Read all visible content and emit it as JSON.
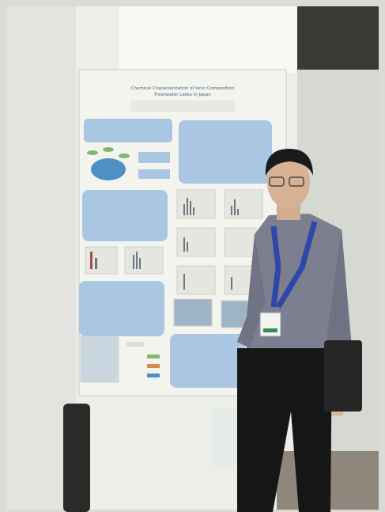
{
  "poster": {
    "title_lines": [
      "Chemical Characterization of Ionic Composition",
      "Freshwater Lakes in Japan"
    ]
  }
}
